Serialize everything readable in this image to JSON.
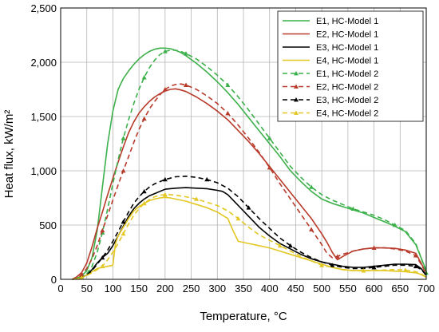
{
  "chart_data": {
    "type": "line",
    "title": "",
    "xlabel": "Temperature, °C",
    "ylabel": "Heat flux, kW/m²",
    "xlim": [
      0,
      700
    ],
    "ylim": [
      0,
      2500
    ],
    "grid": true,
    "legend_position": "top-right",
    "x_ticks": [
      0,
      50,
      100,
      150,
      200,
      250,
      300,
      350,
      400,
      450,
      500,
      550,
      600,
      650,
      700
    ],
    "y_ticks": [
      0,
      500,
      1000,
      1500,
      2000,
      2500
    ],
    "x_tick_labels": [
      "0",
      "50",
      "100",
      "150",
      "200",
      "250",
      "300",
      "350",
      "400",
      "450",
      "500",
      "550",
      "600",
      "650",
      "700"
    ],
    "y_tick_labels": [
      "0",
      "500",
      "1,000",
      "1,500",
      "2,000",
      "2,500"
    ],
    "series": [
      {
        "name": "E1, HC-Model 1",
        "color": "#3cb04a",
        "dash": "solid",
        "marker": "none",
        "x": [
          22,
          30,
          40,
          50,
          60,
          70,
          80,
          90,
          100,
          110,
          120,
          130,
          140,
          150,
          160,
          170,
          180,
          190,
          200,
          210,
          220,
          230,
          240,
          260,
          280,
          300,
          320,
          340,
          360,
          380,
          400,
          420,
          440,
          460,
          480,
          500,
          520,
          540,
          560,
          580,
          600,
          620,
          640,
          660,
          680,
          690,
          700
        ],
        "y": [
          0,
          10,
          30,
          80,
          200,
          450,
          850,
          1250,
          1550,
          1750,
          1850,
          1920,
          1980,
          2030,
          2070,
          2100,
          2120,
          2130,
          2130,
          2125,
          2110,
          2090,
          2060,
          1990,
          1910,
          1820,
          1720,
          1610,
          1490,
          1370,
          1250,
          1130,
          1000,
          900,
          810,
          740,
          700,
          670,
          640,
          610,
          570,
          530,
          490,
          440,
          320,
          200,
          80
        ]
      },
      {
        "name": "E2, HC-Model 1",
        "color": "#b83a2a",
        "dash": "solid",
        "marker": "none",
        "x": [
          22,
          30,
          40,
          50,
          60,
          70,
          80,
          90,
          100,
          110,
          120,
          130,
          140,
          150,
          160,
          170,
          180,
          190,
          200,
          210,
          220,
          230,
          240,
          260,
          280,
          300,
          320,
          340,
          360,
          380,
          400,
          420,
          440,
          460,
          480,
          500,
          510,
          520,
          530,
          540,
          560,
          580,
          600,
          620,
          640,
          660,
          680,
          690,
          700
        ],
        "y": [
          0,
          20,
          60,
          150,
          300,
          470,
          620,
          780,
          930,
          1080,
          1220,
          1350,
          1450,
          1530,
          1590,
          1640,
          1680,
          1710,
          1735,
          1750,
          1755,
          1745,
          1730,
          1680,
          1620,
          1550,
          1470,
          1370,
          1270,
          1160,
          1040,
          920,
          800,
          680,
          560,
          420,
          340,
          250,
          180,
          210,
          260,
          280,
          290,
          290,
          285,
          270,
          240,
          150,
          60
        ]
      },
      {
        "name": "E3, HC-Model 1",
        "color": "#000000",
        "dash": "solid",
        "marker": "none",
        "x": [
          22,
          30,
          40,
          50,
          60,
          70,
          80,
          90,
          100,
          110,
          120,
          130,
          140,
          150,
          160,
          170,
          180,
          190,
          200,
          220,
          240,
          260,
          280,
          300,
          310,
          320,
          340,
          360,
          380,
          400,
          420,
          440,
          460,
          480,
          500,
          520,
          540,
          560,
          580,
          600,
          620,
          640,
          660,
          680,
          690,
          700
        ],
        "y": [
          0,
          5,
          15,
          40,
          90,
          150,
          200,
          240,
          310,
          400,
          490,
          580,
          650,
          700,
          740,
          770,
          790,
          810,
          830,
          840,
          845,
          840,
          835,
          820,
          810,
          780,
          680,
          580,
          480,
          400,
          330,
          280,
          230,
          190,
          160,
          140,
          120,
          110,
          110,
          120,
          130,
          140,
          140,
          135,
          100,
          40
        ]
      },
      {
        "name": "E4, HC-Model 1",
        "color": "#e3c722",
        "dash": "solid",
        "marker": "none",
        "x": [
          22,
          30,
          40,
          50,
          60,
          70,
          80,
          90,
          100,
          105,
          110,
          120,
          130,
          140,
          150,
          160,
          170,
          180,
          190,
          200,
          210,
          220,
          240,
          260,
          280,
          300,
          320,
          330,
          340,
          360,
          380,
          400,
          420,
          440,
          460,
          480,
          500,
          520,
          540,
          560,
          580,
          600,
          620,
          640,
          660,
          680,
          690,
          700
        ],
        "y": [
          0,
          5,
          15,
          40,
          70,
          100,
          110,
          120,
          130,
          330,
          400,
          480,
          560,
          630,
          670,
          700,
          725,
          740,
          750,
          755,
          750,
          740,
          720,
          690,
          660,
          620,
          560,
          450,
          350,
          330,
          310,
          290,
          260,
          230,
          200,
          170,
          140,
          110,
          90,
          80,
          80,
          80,
          80,
          75,
          70,
          60,
          45,
          20
        ]
      },
      {
        "name": "E1, HC-Model 2",
        "color": "#3cb04a",
        "dash": "dashed",
        "marker": "triangle",
        "x": [
          22,
          30,
          40,
          50,
          60,
          70,
          80,
          90,
          100,
          110,
          120,
          130,
          140,
          150,
          160,
          170,
          180,
          190,
          200,
          210,
          220,
          230,
          240,
          260,
          280,
          300,
          320,
          340,
          360,
          380,
          400,
          420,
          440,
          460,
          480,
          500,
          520,
          540,
          560,
          580,
          600,
          620,
          640,
          660,
          680,
          690,
          700
        ],
        "y": [
          0,
          10,
          20,
          50,
          120,
          250,
          430,
          650,
          880,
          1100,
          1300,
          1470,
          1620,
          1750,
          1860,
          1950,
          2020,
          2070,
          2100,
          2110,
          2110,
          2100,
          2080,
          2030,
          1960,
          1880,
          1790,
          1680,
          1560,
          1430,
          1300,
          1170,
          1040,
          940,
          850,
          780,
          730,
          690,
          650,
          620,
          590,
          550,
          500,
          450,
          330,
          200,
          60
        ]
      },
      {
        "name": "E2, HC-Model 2",
        "color": "#b83a2a",
        "dash": "dashed",
        "marker": "triangle",
        "x": [
          22,
          30,
          40,
          50,
          60,
          70,
          80,
          90,
          100,
          110,
          120,
          130,
          140,
          150,
          160,
          170,
          180,
          190,
          200,
          210,
          220,
          230,
          240,
          260,
          280,
          300,
          320,
          340,
          360,
          380,
          400,
          420,
          440,
          460,
          480,
          500,
          510,
          520,
          530,
          540,
          560,
          580,
          600,
          620,
          640,
          660,
          680,
          690,
          700
        ],
        "y": [
          0,
          10,
          40,
          100,
          190,
          310,
          450,
          590,
          730,
          870,
          1000,
          1130,
          1260,
          1380,
          1480,
          1570,
          1640,
          1700,
          1750,
          1780,
          1795,
          1800,
          1790,
          1750,
          1690,
          1620,
          1530,
          1420,
          1300,
          1170,
          1030,
          880,
          740,
          600,
          460,
          320,
          240,
          200,
          210,
          230,
          260,
          280,
          290,
          290,
          280,
          260,
          220,
          140,
          50
        ]
      },
      {
        "name": "E3, HC-Model 2",
        "color": "#000000",
        "dash": "dashed",
        "marker": "triangle",
        "x": [
          22,
          30,
          40,
          50,
          60,
          70,
          80,
          90,
          100,
          110,
          120,
          130,
          140,
          150,
          160,
          170,
          180,
          190,
          200,
          220,
          240,
          260,
          280,
          300,
          320,
          340,
          360,
          380,
          400,
          420,
          440,
          460,
          480,
          500,
          520,
          540,
          560,
          580,
          600,
          620,
          640,
          660,
          680,
          690,
          700
        ],
        "y": [
          0,
          5,
          15,
          40,
          80,
          140,
          200,
          270,
          350,
          440,
          530,
          620,
          700,
          760,
          810,
          850,
          880,
          900,
          920,
          945,
          950,
          940,
          920,
          890,
          840,
          760,
          660,
          560,
          470,
          380,
          310,
          250,
          200,
          160,
          130,
          110,
          100,
          100,
          110,
          120,
          130,
          130,
          120,
          90,
          40
        ]
      },
      {
        "name": "E4, HC-Model 2",
        "color": "#e3c722",
        "dash": "dashed",
        "marker": "triangle",
        "x": [
          22,
          30,
          40,
          50,
          60,
          70,
          80,
          90,
          100,
          110,
          120,
          130,
          140,
          150,
          160,
          170,
          180,
          190,
          200,
          210,
          220,
          240,
          260,
          280,
          300,
          320,
          340,
          360,
          380,
          400,
          420,
          440,
          460,
          480,
          500,
          520,
          540,
          560,
          580,
          600,
          620,
          640,
          660,
          680,
          690,
          700
        ],
        "y": [
          0,
          5,
          15,
          35,
          60,
          90,
          120,
          180,
          250,
          330,
          420,
          510,
          590,
          650,
          700,
          735,
          760,
          775,
          780,
          780,
          775,
          760,
          740,
          710,
          680,
          630,
          560,
          480,
          410,
          360,
          310,
          260,
          210,
          170,
          130,
          110,
          90,
          80,
          80,
          80,
          85,
          90,
          85,
          70,
          50,
          20
        ]
      }
    ]
  }
}
